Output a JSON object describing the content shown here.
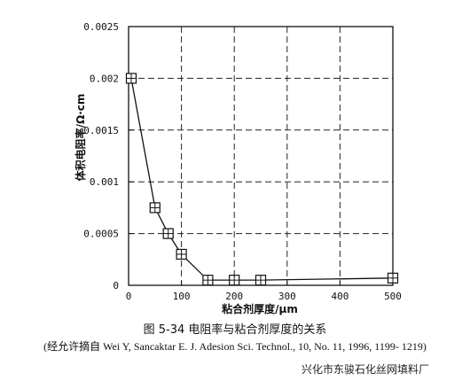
{
  "chart_data": {
    "type": "line",
    "xlabel": "粘合剂厚度/μm",
    "ylabel": "体积电阻率/Ω·cm",
    "xlim": [
      0,
      500
    ],
    "ylim": [
      0,
      0.0025
    ],
    "x_ticks": [
      "0",
      "100",
      "200",
      "300",
      "400",
      "500"
    ],
    "y_ticks": [
      "0",
      "0.0005",
      "0.001",
      "0.0015",
      "0.002",
      "0.0025"
    ],
    "grid": true,
    "marker": "square-plus",
    "series": [
      {
        "x": [
          5,
          50,
          75,
          100,
          150,
          200,
          250,
          500
        ],
        "y": [
          0.002,
          0.00075,
          0.0005,
          0.0003,
          5e-05,
          5e-05,
          5e-05,
          7e-05
        ]
      }
    ]
  },
  "caption": {
    "title": "图 5-34 电阻率与粘合剂厚度的关系",
    "source": "(经允许摘自 Wei Y, Sancaktar E. J. Adesion Sci. Technol., 10, No. 11, 1996, 1199- 1219)"
  },
  "watermark": "兴化市东骏石化丝网填料厂"
}
